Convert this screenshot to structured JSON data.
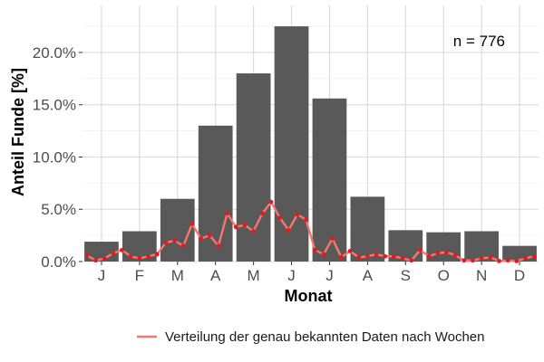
{
  "chart_data": {
    "type": "bar",
    "categories": [
      "J",
      "F",
      "M",
      "A",
      "M",
      "J",
      "J",
      "A",
      "S",
      "O",
      "N",
      "D"
    ],
    "values": [
      1.9,
      2.9,
      6.0,
      13.0,
      18.0,
      22.5,
      15.6,
      6.2,
      3.0,
      2.8,
      2.9,
      1.5
    ],
    "bar_color": "#595959",
    "xlabel": "Monat",
    "ylabel": "Anteil Funde [%]",
    "ylim": [
      0,
      24.5
    ],
    "yticks": [
      0,
      5,
      10,
      15,
      20
    ],
    "ytick_labels": [
      "0.0%",
      "5.0%",
      "10.0%",
      "15.0%",
      "20.0%"
    ],
    "annotation": "n = 776",
    "grid": true,
    "legend_position": "bottom",
    "series": [
      {
        "name": "Verteilung der genau bekannten Daten nach Wochen",
        "type": "line",
        "color": "#f8766d",
        "point_color": "#e41a1c",
        "x": [
          1,
          2,
          3,
          4,
          5,
          6,
          7,
          8,
          9,
          10,
          11,
          12,
          13,
          14,
          15,
          16,
          17,
          18,
          19,
          20,
          21,
          22,
          23,
          24,
          25,
          26,
          27,
          28,
          29,
          30,
          31,
          32,
          33,
          34,
          35,
          36,
          37,
          38,
          39,
          40,
          41,
          42,
          43,
          44,
          45,
          46,
          47,
          48,
          49,
          50,
          51,
          52
        ],
        "values": [
          0.6,
          0.1,
          0.3,
          0.8,
          1.1,
          0.5,
          0.3,
          0.5,
          0.7,
          1.8,
          2.0,
          1.5,
          3.6,
          2.2,
          2.5,
          1.5,
          4.6,
          3.3,
          3.5,
          2.9,
          4.6,
          5.7,
          4.2,
          3.0,
          4.5,
          4.0,
          1.1,
          0.7,
          2.2,
          0.4,
          1.0,
          0.4,
          0.5,
          0.7,
          0.5,
          0.5,
          0.3,
          0.1,
          1.1,
          0.5,
          0.8,
          0.9,
          0.6,
          0.1,
          0.1,
          0.3,
          0.4,
          0.05,
          0.1,
          0.05,
          0.3,
          0.5
        ]
      }
    ]
  }
}
